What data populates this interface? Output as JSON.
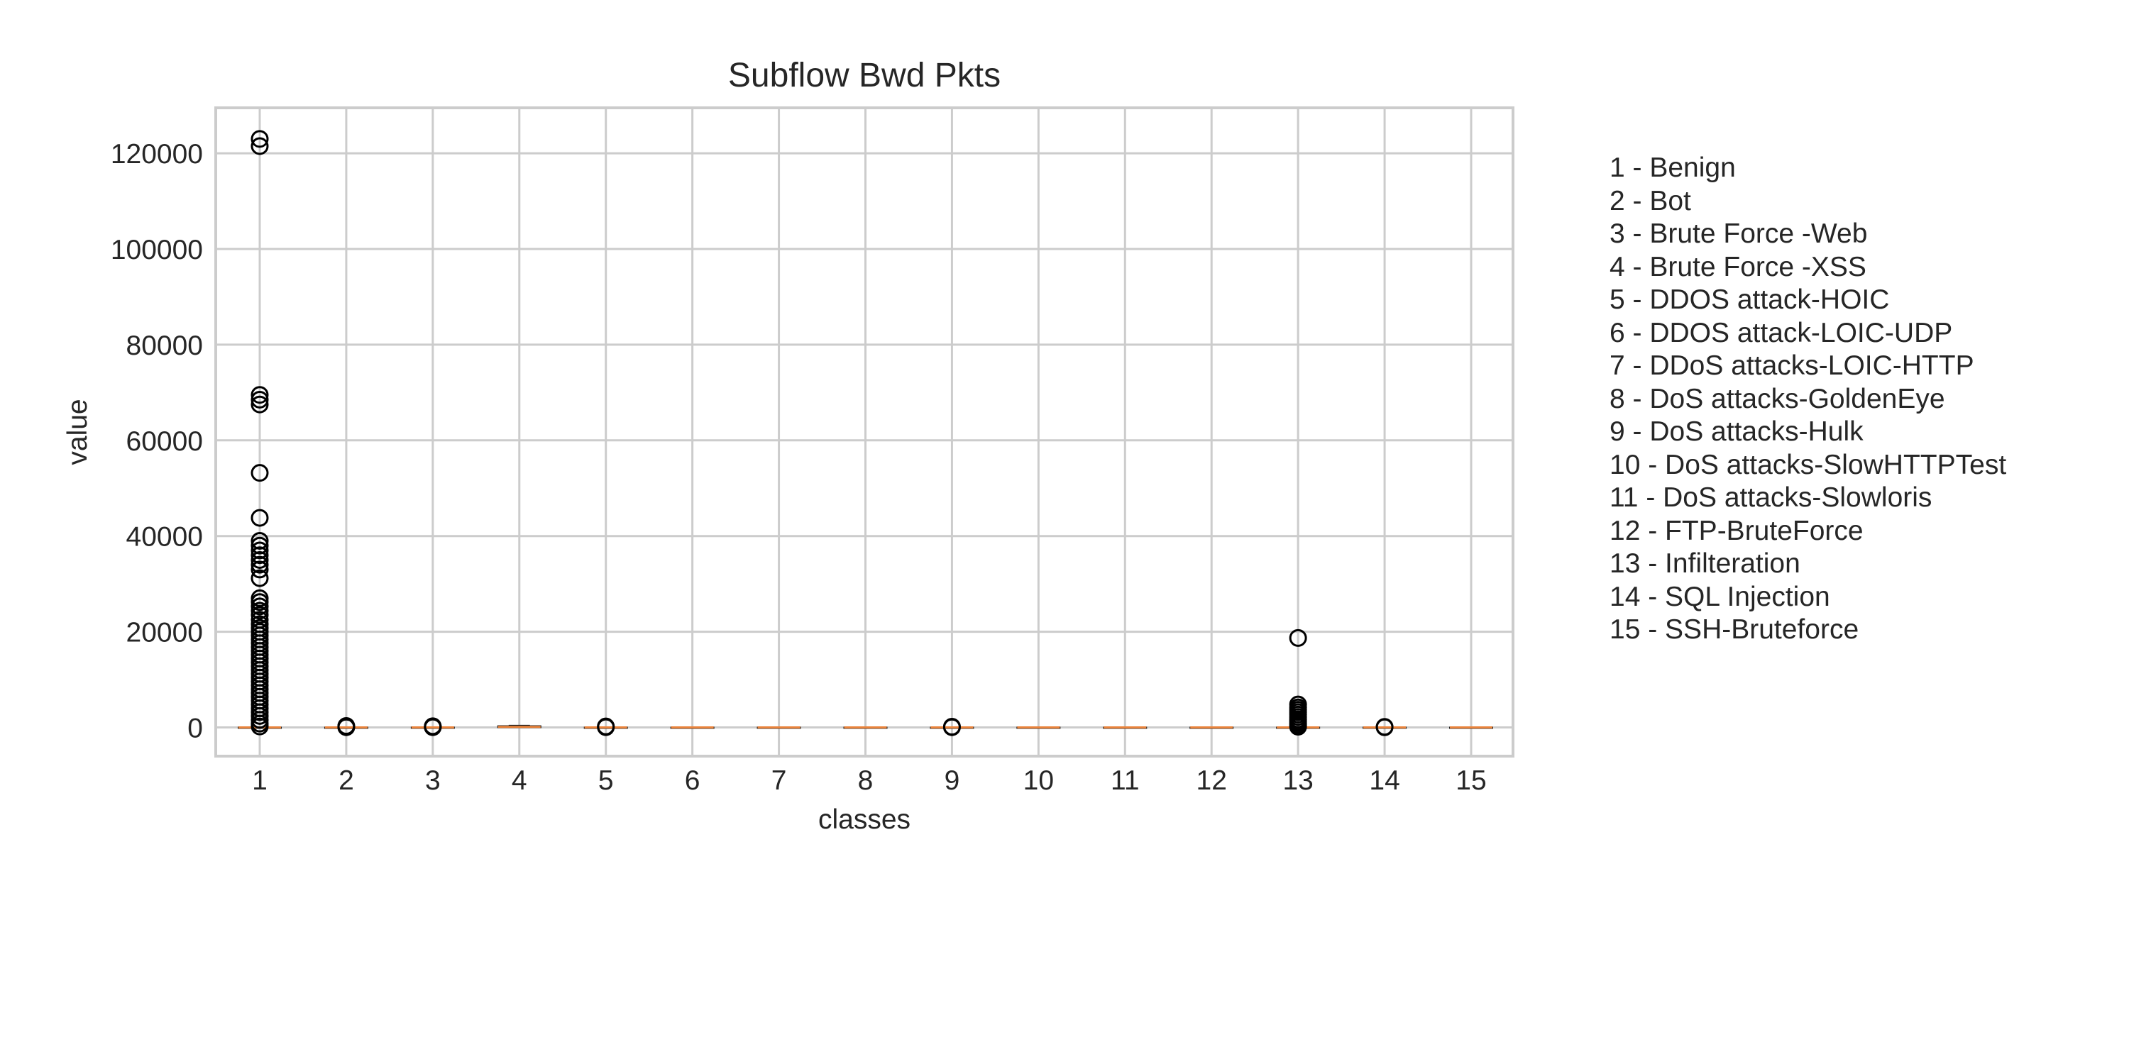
{
  "chart_data": {
    "type": "boxplot",
    "title": "Subflow Bwd Pkts",
    "xlabel": "classes",
    "ylabel": "value",
    "ylim": [
      -6000,
      129500
    ],
    "y_ticks": [
      0,
      20000,
      40000,
      60000,
      80000,
      100000,
      120000
    ],
    "y_tick_labels": [
      "0",
      "20000",
      "40000",
      "60000",
      "80000",
      "100000",
      "120000"
    ],
    "grid": true,
    "legend_position": "right",
    "colors": {
      "median": "#e8823a",
      "box": "#1f1f1f",
      "grid": "#cccccc",
      "axes": "#cccccc"
    },
    "classes": [
      {
        "id": "1",
        "name": "1 - Benign",
        "q1": 0,
        "median": 1,
        "q3": 5,
        "whisker_low": 0,
        "whisker_high": 12,
        "outliers": [
          123000,
          121500,
          69500,
          68500,
          67500,
          53200,
          43800,
          39000,
          38000,
          37000,
          36000,
          35000,
          34000,
          33000,
          31200,
          27000,
          26200,
          25300,
          24400,
          23500,
          22500,
          21600,
          20800,
          20000,
          19200,
          18400,
          17600,
          16800,
          16000,
          15200,
          14400,
          13600,
          12800,
          12000,
          11200,
          10400,
          9600,
          8800,
          8000,
          7200,
          6400,
          5600,
          4800,
          4000,
          3200,
          2400,
          1600,
          800,
          200
        ]
      },
      {
        "id": "2",
        "name": "2 - Bot",
        "q1": 0,
        "median": 1,
        "q3": 2,
        "whisker_low": 0,
        "whisker_high": 3,
        "outliers": [
          300,
          150,
          50
        ]
      },
      {
        "id": "3",
        "name": "3 - Brute Force -Web",
        "q1": 0,
        "median": 2,
        "q3": 10,
        "whisker_low": 0,
        "whisker_high": 30,
        "outliers": [
          250,
          100,
          60
        ]
      },
      {
        "id": "4",
        "name": "4 - Brute Force -XSS",
        "q1": 10,
        "median": 120,
        "q3": 300,
        "whisker_low": 0,
        "whisker_high": 400,
        "outliers": []
      },
      {
        "id": "5",
        "name": "5 - DDOS attack-HOIC",
        "q1": 0,
        "median": 1,
        "q3": 1,
        "whisker_low": 0,
        "whisker_high": 1,
        "outliers": [
          200,
          60
        ]
      },
      {
        "id": "6",
        "name": "6 - DDOS attack-LOIC-UDP",
        "q1": 0,
        "median": 1,
        "q3": 1,
        "whisker_low": 0,
        "whisker_high": 1,
        "outliers": []
      },
      {
        "id": "7",
        "name": "7 - DDoS attacks-LOIC-HTTP",
        "q1": 0,
        "median": 1,
        "q3": 2,
        "whisker_low": 0,
        "whisker_high": 3,
        "outliers": []
      },
      {
        "id": "8",
        "name": "8 - DoS attacks-GoldenEye",
        "q1": 0,
        "median": 2,
        "q3": 4,
        "whisker_low": 0,
        "whisker_high": 6,
        "outliers": []
      },
      {
        "id": "9",
        "name": "9 - DoS attacks-Hulk",
        "q1": 0,
        "median": 1,
        "q3": 1,
        "whisker_low": 0,
        "whisker_high": 2,
        "outliers": [
          150,
          50
        ]
      },
      {
        "id": "10",
        "name": "10 - DoS attacks-SlowHTTPTest",
        "q1": 0,
        "median": 0,
        "q3": 0,
        "whisker_low": 0,
        "whisker_high": 0,
        "outliers": []
      },
      {
        "id": "11",
        "name": "11 - DoS attacks-Slowloris",
        "q1": 0,
        "median": 1,
        "q3": 2,
        "whisker_low": 0,
        "whisker_high": 3,
        "outliers": []
      },
      {
        "id": "12",
        "name": "12 - FTP-BruteForce",
        "q1": 0,
        "median": 0,
        "q3": 0,
        "whisker_low": 0,
        "whisker_high": 0,
        "outliers": []
      },
      {
        "id": "13",
        "name": "13 - Infilteration",
        "q1": 0,
        "median": 1,
        "q3": 4,
        "whisker_low": 0,
        "whisker_high": 10,
        "outliers": [
          18700,
          4800,
          4200,
          3700,
          3200,
          2700,
          2200,
          1700,
          1300,
          900,
          500,
          150
        ]
      },
      {
        "id": "14",
        "name": "14 - SQL Injection",
        "q1": 0,
        "median": 2,
        "q3": 8,
        "whisker_low": 0,
        "whisker_high": 15,
        "outliers": [
          120,
          40
        ]
      },
      {
        "id": "15",
        "name": "15 - SSH-Bruteforce",
        "q1": 0,
        "median": 1,
        "q3": 2,
        "whisker_low": 0,
        "whisker_high": 3,
        "outliers": []
      }
    ]
  }
}
